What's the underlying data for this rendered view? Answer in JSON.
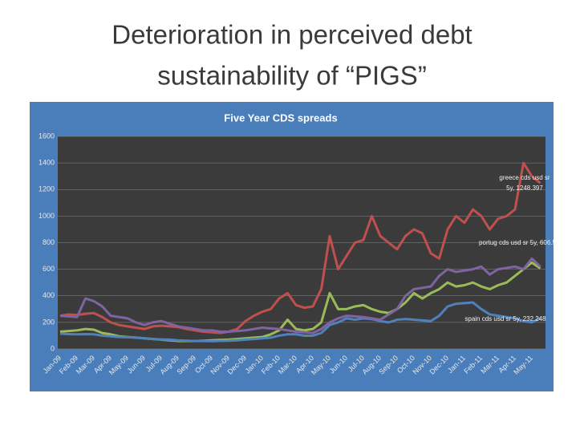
{
  "slide_title": [
    "Deterioration in perceived debt",
    "sustainability of “PIGS”"
  ],
  "chart_data": {
    "type": "line",
    "title": "Five Year CDS spreads",
    "categories": [
      "Jan-09",
      null,
      "Feb-09",
      null,
      "Mar-09",
      null,
      "Apr-09",
      null,
      "May-09",
      null,
      "Jun-09",
      null,
      "Jul-09",
      null,
      "Aug-09",
      null,
      "Sep-09",
      null,
      "Oct-09",
      null,
      "Nov-09",
      null,
      "Dec-09",
      null,
      "Jan-10",
      null,
      "Feb-10",
      null,
      "Mar-10",
      null,
      "Apr-10",
      null,
      "May-10",
      null,
      "Jun-10",
      null,
      "Jul-10",
      null,
      "Aug-10",
      null,
      "Sep-10",
      null,
      "Oct-10",
      null,
      "Nov-10",
      null,
      "Dec-10",
      null,
      "Jan-11",
      null,
      "Feb-11",
      null,
      "Mar-11",
      null,
      "Apr-11",
      null,
      "May-11",
      null
    ],
    "series": [
      {
        "color": "#c0504d",
        "values": [
          250,
          260,
          255,
          265,
          270,
          240,
          200,
          180,
          170,
          160,
          150,
          170,
          175,
          170,
          165,
          150,
          140,
          130,
          125,
          120,
          130,
          150,
          210,
          250,
          280,
          300,
          380,
          420,
          330,
          310,
          320,
          450,
          850,
          600,
          700,
          800,
          820,
          1000,
          850,
          800,
          750,
          850,
          900,
          870,
          720,
          680,
          900,
          1000,
          950,
          1050,
          1000,
          900,
          980,
          1000,
          1050,
          1400,
          1300,
          1248.397
        ]
      },
      {
        "color": "#9bbb59",
        "values": [
          130,
          135,
          140,
          150,
          145,
          120,
          110,
          95,
          90,
          85,
          80,
          75,
          70,
          65,
          60,
          60,
          60,
          62,
          65,
          68,
          70,
          75,
          80,
          85,
          90,
          110,
          140,
          220,
          150,
          140,
          150,
          200,
          420,
          300,
          300,
          320,
          330,
          300,
          280,
          270,
          300,
          350,
          420,
          380,
          420,
          450,
          500,
          470,
          480,
          500,
          470,
          450,
          480,
          500,
          550,
          600,
          650,
          606.5
        ]
      },
      {
        "color": "#4f81bd",
        "values": [
          115,
          112,
          110,
          112,
          110,
          100,
          95,
          90,
          88,
          85,
          80,
          75,
          72,
          70,
          65,
          62,
          60,
          60,
          58,
          60,
          62,
          65,
          70,
          75,
          80,
          85,
          100,
          110,
          110,
          100,
          100,
          120,
          180,
          200,
          230,
          220,
          230,
          225,
          210,
          200,
          220,
          225,
          220,
          215,
          210,
          250,
          320,
          340,
          345,
          350,
          300,
          260,
          250,
          240,
          230,
          210,
          200,
          232.248
        ]
      },
      {
        "color": "#8064a2",
        "values": [
          250,
          245,
          240,
          380,
          360,
          320,
          250,
          240,
          230,
          200,
          180,
          200,
          210,
          190,
          170,
          160,
          150,
          140,
          140,
          130,
          130,
          135,
          140,
          150,
          160,
          155,
          150,
          140,
          130,
          125,
          120,
          150,
          200,
          230,
          250,
          245,
          240,
          230,
          220,
          260,
          300,
          400,
          450,
          460,
          470,
          550,
          600,
          580,
          590,
          600,
          620,
          560,
          600,
          610,
          620,
          600,
          680,
          620
        ]
      }
    ],
    "annotations": [
      "greece cds usd sr",
      "5y, 1248.397",
      "portug cds usd sr 5y, 606.5",
      "spain cds usd sr 5y, 232.248"
    ],
    "ylim": [
      0,
      1600
    ],
    "yticks": [
      0,
      200,
      400,
      600,
      800,
      1000,
      1200,
      1400,
      1600
    ],
    "grid": true
  }
}
